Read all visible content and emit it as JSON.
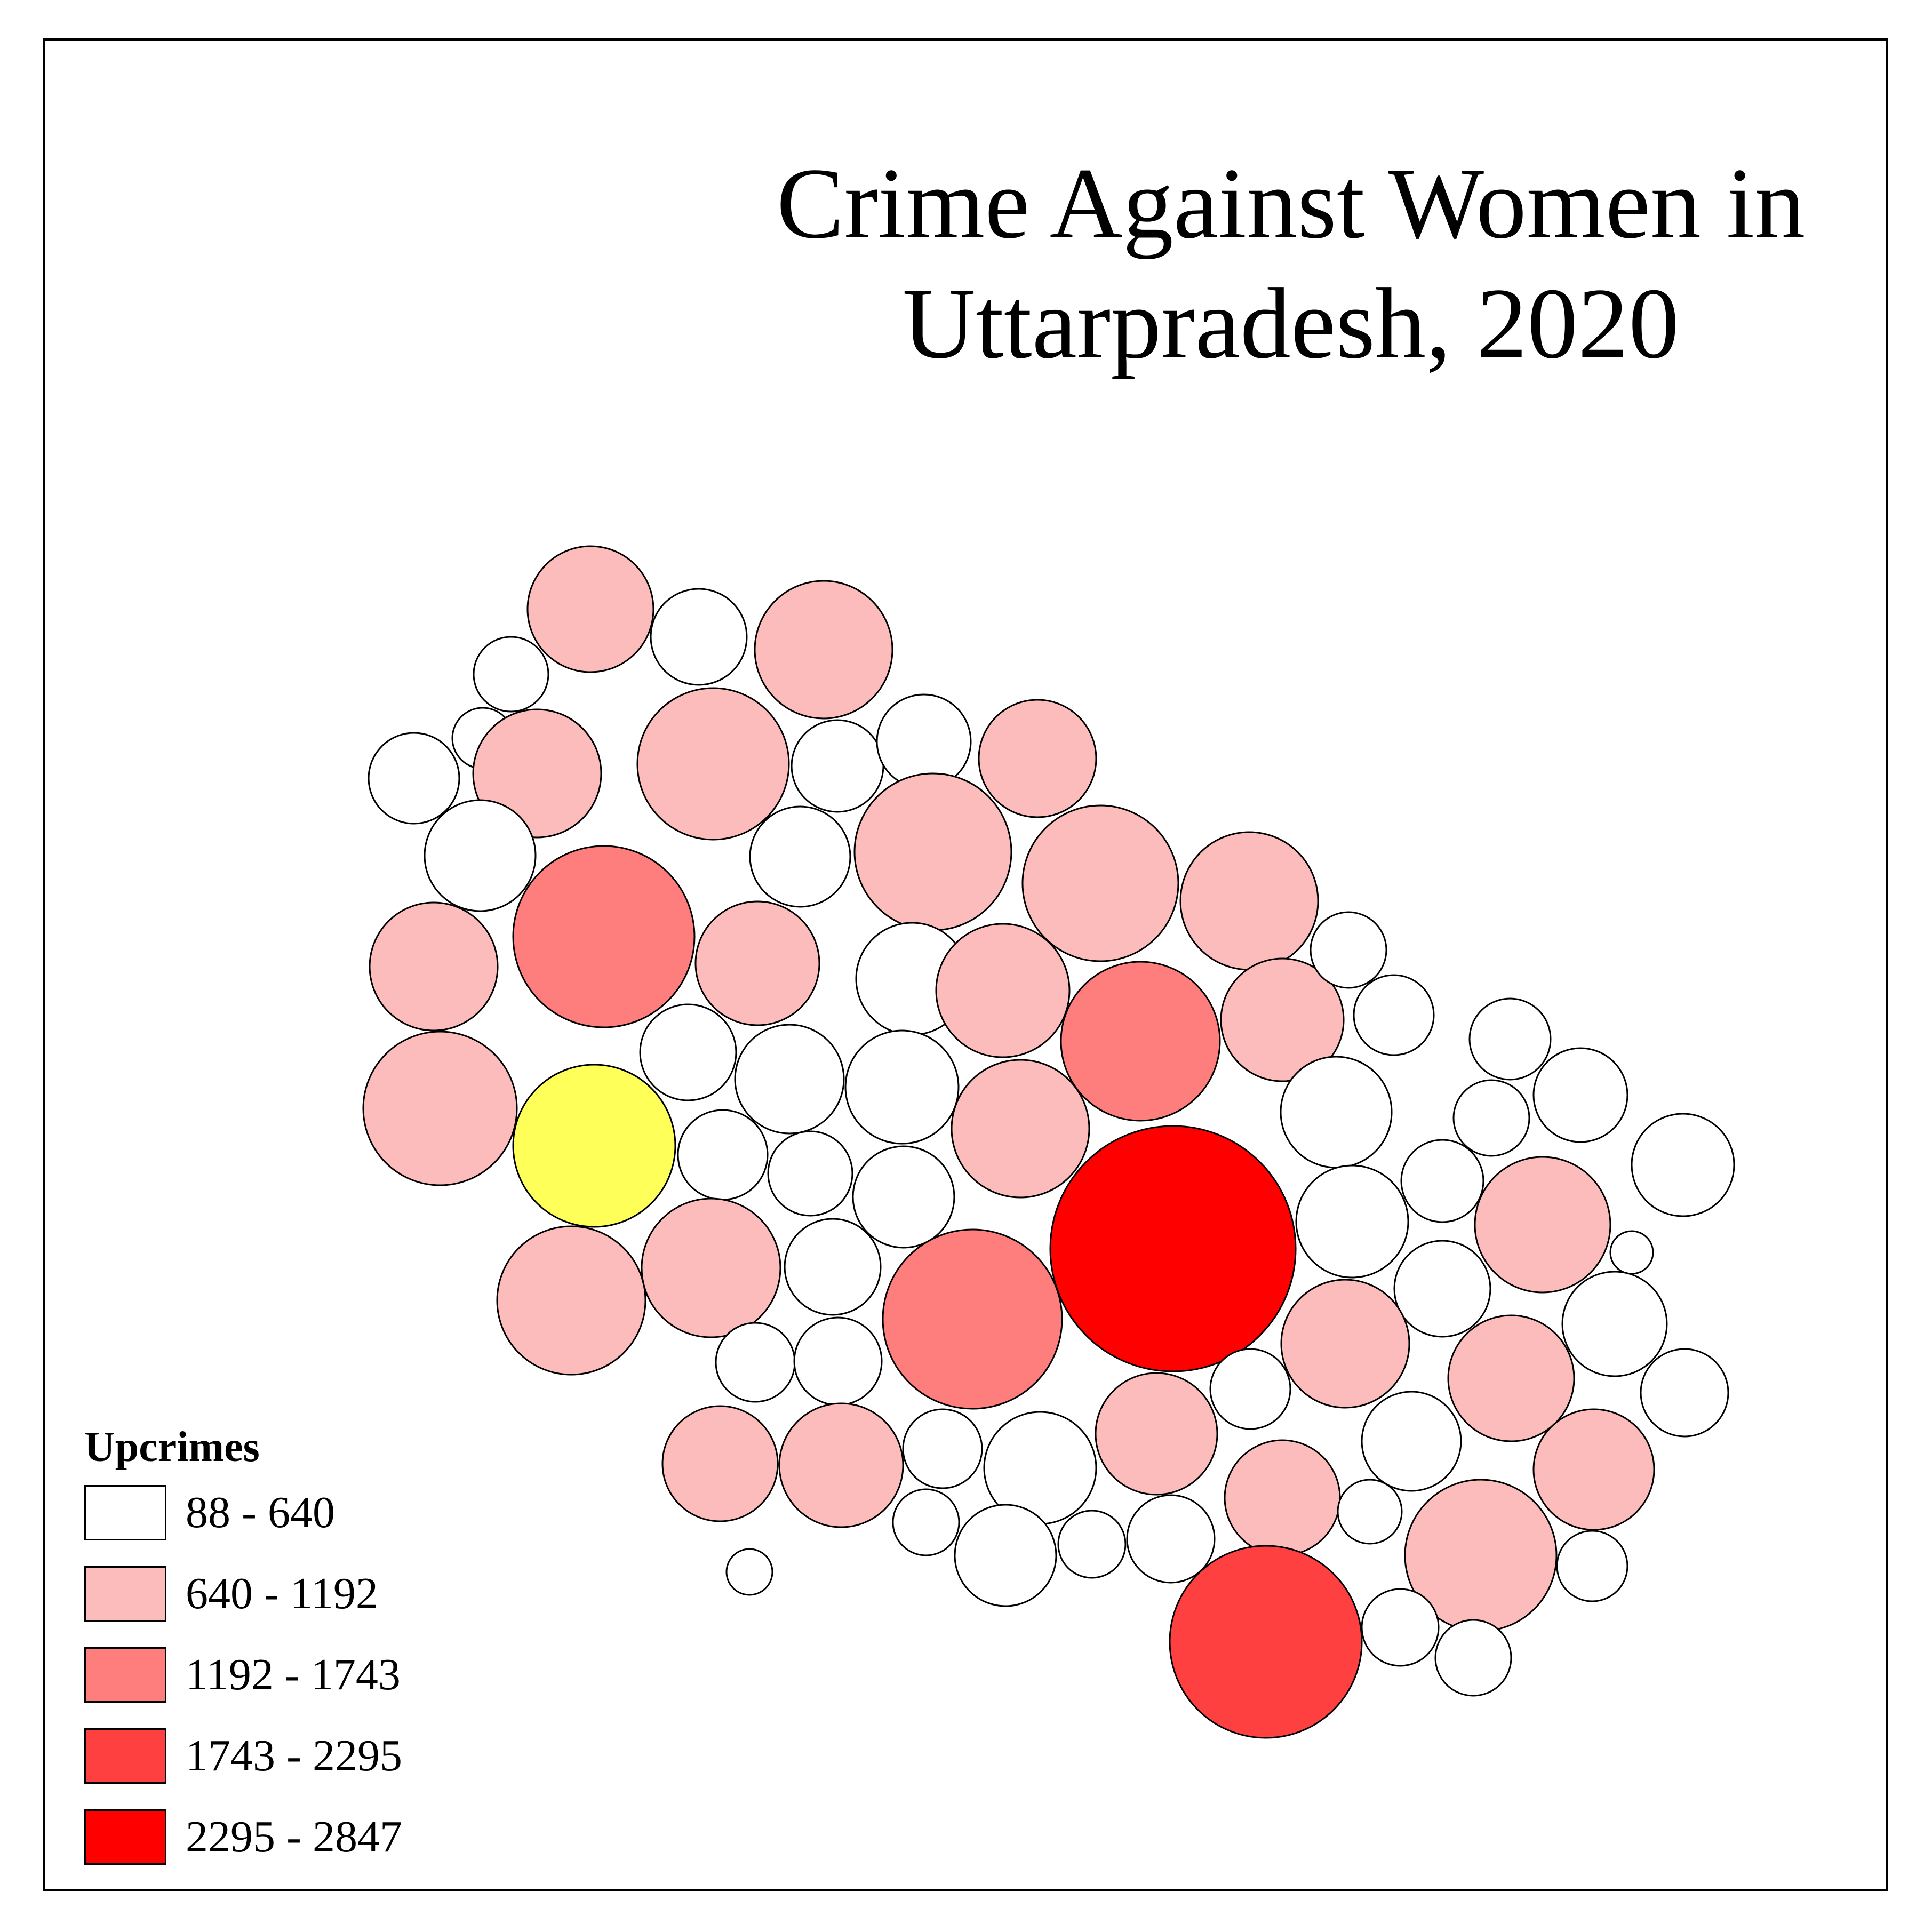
{
  "map": {
    "title_line1": "Crime Against Women in",
    "title_line2": "Uttarpradesh, 2020"
  },
  "legend": {
    "title": "Upcrimes",
    "classes": [
      {
        "label": "88 - 640",
        "color": "#ffffff"
      },
      {
        "label": "640 - 1192",
        "color": "#fdbcbc"
      },
      {
        "label": "1192 - 1743",
        "color": "#fe7e7e"
      },
      {
        "label": "1743 - 2295",
        "color": "#fe4040"
      },
      {
        "label": "2295 - 2847",
        "color": "#fe0000"
      }
    ],
    "highlight_color": "#ffff5a"
  }
}
